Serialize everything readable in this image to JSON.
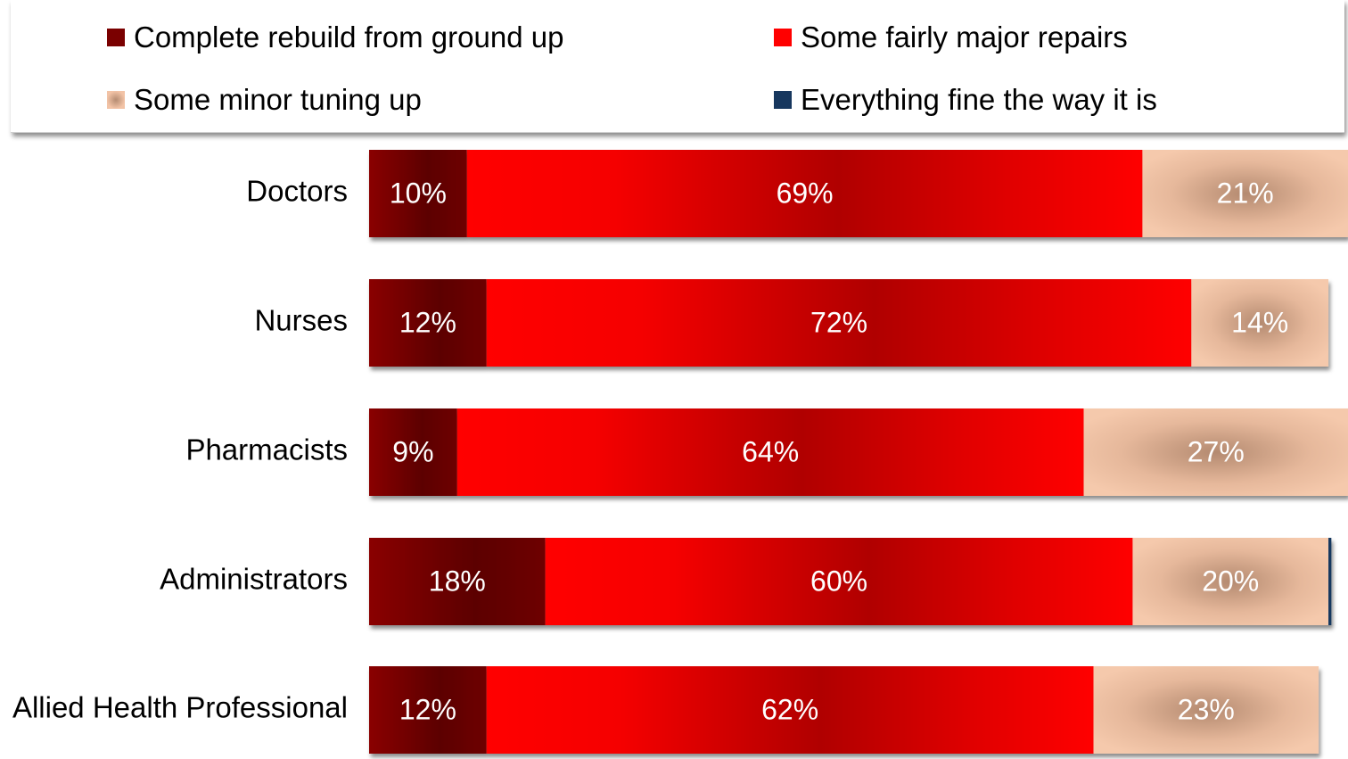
{
  "chart_data": {
    "type": "bar",
    "orientation": "horizontal",
    "stacked": true,
    "percent_stacked": true,
    "categories": [
      "Doctors",
      "Nurses",
      "Pharmacists",
      "Administrators",
      "Allied Health Professional"
    ],
    "series": [
      {
        "name": "Complete rebuild from ground up",
        "values": [
          10,
          12,
          9,
          18,
          12
        ],
        "labels": [
          "10%",
          "12%",
          "9%",
          "18%",
          "12%"
        ],
        "color": "#7a0000"
      },
      {
        "name": "Some fairly major repairs",
        "values": [
          69,
          72,
          64,
          60,
          62
        ],
        "labels": [
          "69%",
          "72%",
          "64%",
          "60%",
          "62%"
        ],
        "color": "#ff0000"
      },
      {
        "name": "Some minor tuning up",
        "values": [
          21,
          14,
          27,
          20,
          23
        ],
        "labels": [
          "21%",
          "14%",
          "27%",
          "20%",
          "23%"
        ],
        "color": "#f2c3a6"
      },
      {
        "name": "Everything fine the way it is",
        "values": [
          0.3,
          0,
          0,
          0.3,
          0
        ],
        "labels": [
          "",
          "",
          "",
          "",
          ""
        ],
        "color": "#17375e"
      }
    ],
    "xlim": [
      0,
      100
    ],
    "legend_position": "top",
    "grid": false
  }
}
